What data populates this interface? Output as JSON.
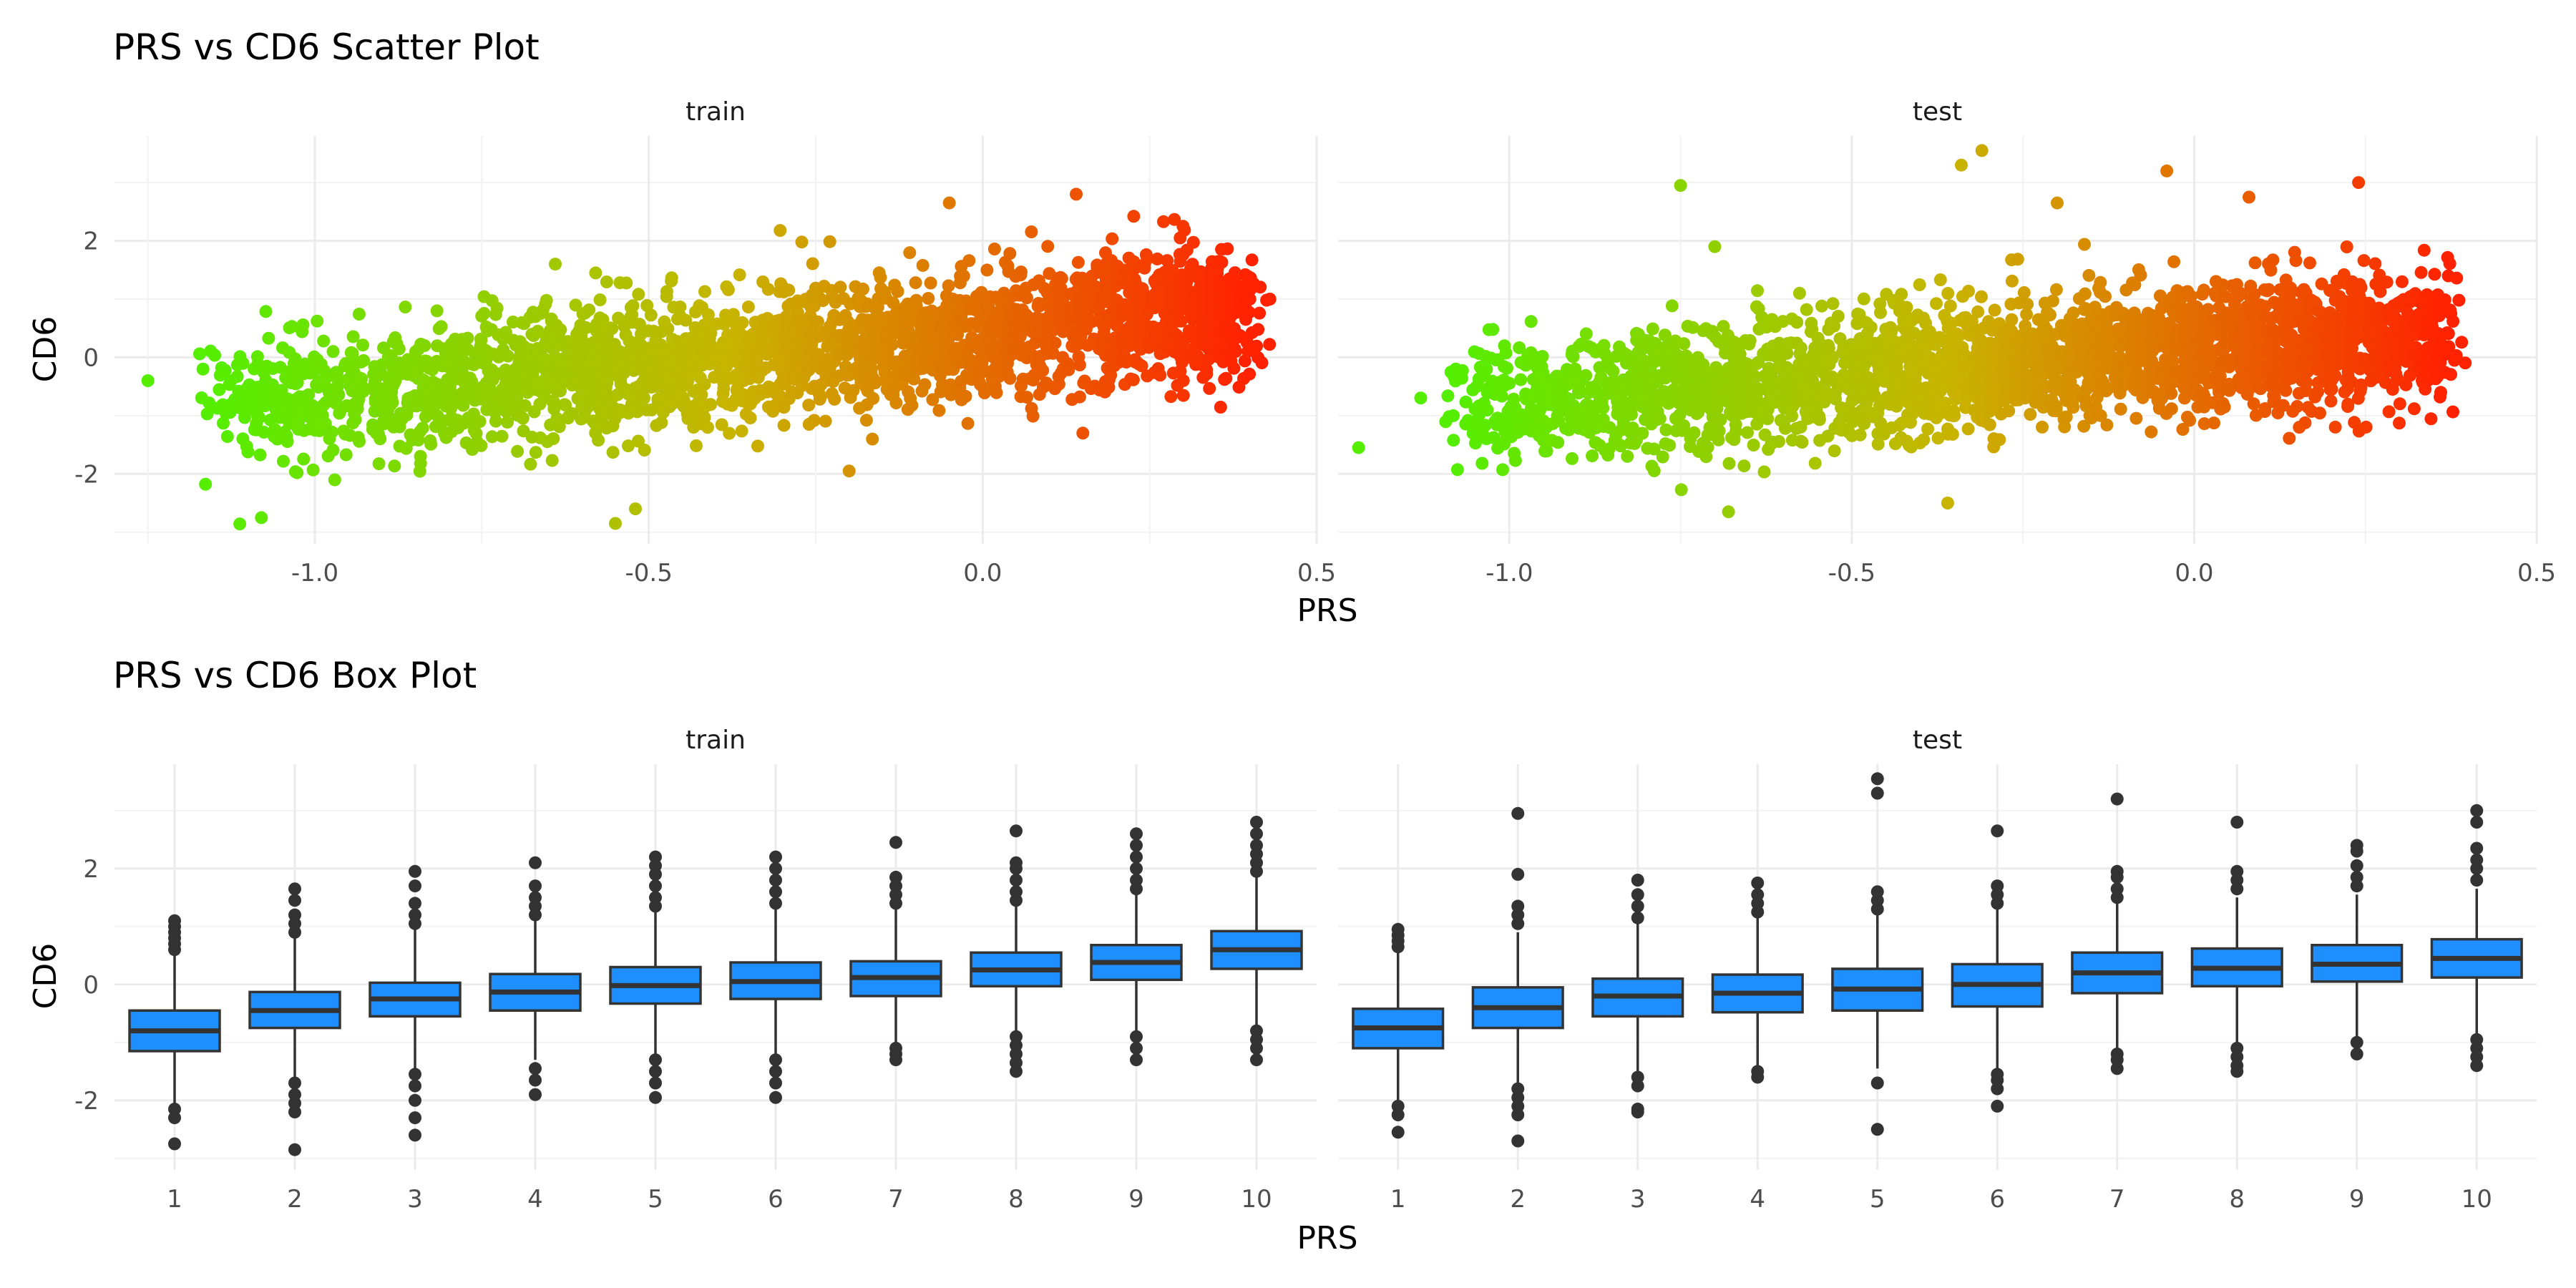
{
  "chart_data": [
    {
      "type": "scatter",
      "title": "PRS vs CD6 Scatter Plot",
      "xlabel": "PRS",
      "ylabel": "CD6",
      "grid": true,
      "legend": "none",
      "color_gradient": [
        "#55ee00",
        "#c8b400",
        "#ff2200"
      ],
      "panels": [
        {
          "name": "train",
          "xlim": [
            -1.3,
            0.5
          ],
          "ylim": [
            -3.2,
            3.8
          ],
          "x_ticks": [
            -1.0,
            -0.5,
            0.0,
            0.5
          ],
          "x_tick_labels": [
            "-1.0",
            "-0.5",
            "0.0",
            "0.5"
          ],
          "y_ticks": [
            -2,
            0,
            2
          ],
          "y_tick_labels": [
            "-2",
            "0",
            "2"
          ],
          "trend": {
            "x_start": -1.15,
            "x_end": 0.4,
            "y_start": -0.85,
            "y_end": 0.85,
            "spread": 0.55
          },
          "outliers": [
            [
              -1.25,
              -0.4
            ],
            [
              -1.08,
              -2.75
            ],
            [
              -0.55,
              -2.85
            ],
            [
              -0.52,
              -2.6
            ],
            [
              -0.64,
              1.6
            ],
            [
              -0.05,
              2.65
            ],
            [
              0.14,
              2.8
            ],
            [
              0.3,
              2.25
            ],
            [
              0.4,
              1.0
            ],
            [
              0.43,
              1.0
            ],
            [
              0.38,
              1.4
            ],
            [
              -0.2,
              -1.95
            ],
            [
              0.15,
              -1.3
            ]
          ]
        },
        {
          "name": "test",
          "xlim": [
            -1.25,
            0.5
          ],
          "ylim": [
            -3.2,
            3.8
          ],
          "x_ticks": [
            -1.0,
            -0.5,
            0.0,
            0.5
          ],
          "x_tick_labels": [
            "-1.0",
            "-0.5",
            "0.0",
            "0.5"
          ],
          "y_ticks": [
            -2,
            0,
            2
          ],
          "y_tick_labels": [
            "-2",
            "0",
            "2"
          ],
          "trend": {
            "x_start": -1.08,
            "x_end": 0.37,
            "y_start": -0.85,
            "y_end": 0.45,
            "spread": 0.55
          },
          "outliers": [
            [
              -1.22,
              -1.55
            ],
            [
              -0.75,
              2.95
            ],
            [
              -0.7,
              1.9
            ],
            [
              -0.31,
              3.55
            ],
            [
              -0.34,
              3.3
            ],
            [
              -0.04,
              3.2
            ],
            [
              0.24,
              3.0
            ],
            [
              0.08,
              2.75
            ],
            [
              -0.2,
              2.65
            ],
            [
              -0.68,
              -2.65
            ],
            [
              -0.36,
              -2.5
            ],
            [
              0.36,
              -0.6
            ],
            [
              0.38,
              -0.05
            ]
          ]
        }
      ]
    },
    {
      "type": "box",
      "title": "PRS vs CD6 Box Plot",
      "xlabel": "PRS",
      "ylabel": "CD6",
      "grid": true,
      "legend": "none",
      "box_color": "#1f8fff",
      "categories": [
        "1",
        "2",
        "3",
        "4",
        "5",
        "6",
        "7",
        "8",
        "9",
        "10"
      ],
      "panels": [
        {
          "name": "train",
          "ylim": [
            -3.2,
            3.8
          ],
          "y_ticks": [
            -2,
            0,
            2
          ],
          "y_tick_labels": [
            "-2",
            "0",
            "2"
          ],
          "boxes": [
            {
              "q1": -1.15,
              "median": -0.8,
              "q3": -0.45,
              "whisker_low": -2.05,
              "whisker_high": 0.5,
              "outliers": [
                -2.15,
                -2.3,
                -2.75,
                0.6,
                0.7,
                0.8,
                0.9,
                1.0,
                1.1
              ]
            },
            {
              "q1": -0.75,
              "median": -0.45,
              "q3": -0.13,
              "whisker_low": -1.6,
              "whisker_high": 0.8,
              "outliers": [
                -1.7,
                -1.9,
                -2.05,
                -2.2,
                -2.85,
                0.9,
                1.05,
                1.2,
                1.45,
                1.65
              ]
            },
            {
              "q1": -0.55,
              "median": -0.25,
              "q3": 0.03,
              "whisker_low": -1.45,
              "whisker_high": 0.95,
              "outliers": [
                -1.55,
                -1.75,
                -2.0,
                -2.3,
                -2.6,
                1.05,
                1.2,
                1.4,
                1.7,
                1.95
              ]
            },
            {
              "q1": -0.45,
              "median": -0.13,
              "q3": 0.18,
              "whisker_low": -1.3,
              "whisker_high": 1.1,
              "outliers": [
                -1.45,
                -1.65,
                -1.9,
                1.2,
                1.35,
                1.5,
                1.7,
                2.1
              ]
            },
            {
              "q1": -0.33,
              "median": -0.02,
              "q3": 0.3,
              "whisker_low": -1.2,
              "whisker_high": 1.25,
              "outliers": [
                -1.3,
                -1.5,
                -1.7,
                -1.95,
                1.35,
                1.5,
                1.7,
                1.9,
                2.05,
                2.2
              ]
            },
            {
              "q1": -0.25,
              "median": 0.05,
              "q3": 0.38,
              "whisker_low": -1.2,
              "whisker_high": 1.3,
              "outliers": [
                -1.3,
                -1.5,
                -1.7,
                -1.95,
                1.4,
                1.6,
                1.8,
                2.0,
                2.2
              ]
            },
            {
              "q1": -0.2,
              "median": 0.12,
              "q3": 0.4,
              "whisker_low": -1.0,
              "whisker_high": 1.3,
              "outliers": [
                -1.1,
                -1.2,
                -1.3,
                1.4,
                1.55,
                1.7,
                1.85,
                2.45
              ]
            },
            {
              "q1": -0.03,
              "median": 0.25,
              "q3": 0.55,
              "whisker_low": -0.8,
              "whisker_high": 1.35,
              "outliers": [
                -0.9,
                -1.05,
                -1.2,
                -1.35,
                -1.5,
                1.45,
                1.6,
                1.8,
                2.0,
                2.1,
                2.65
              ]
            },
            {
              "q1": 0.08,
              "median": 0.38,
              "q3": 0.68,
              "whisker_low": -0.8,
              "whisker_high": 1.55,
              "outliers": [
                -0.9,
                -1.1,
                -1.3,
                1.65,
                1.8,
                2.0,
                2.2,
                2.4,
                2.6
              ]
            },
            {
              "q1": 0.27,
              "median": 0.6,
              "q3": 0.92,
              "whisker_low": -0.7,
              "whisker_high": 1.85,
              "outliers": [
                -0.8,
                -0.95,
                -1.1,
                -1.3,
                1.95,
                2.1,
                2.25,
                2.4,
                2.6,
                2.8
              ]
            }
          ]
        },
        {
          "name": "test",
          "ylim": [
            -3.2,
            3.8
          ],
          "y_ticks": [
            -2,
            0,
            2
          ],
          "y_tick_labels": [
            "-2",
            "0",
            "2"
          ],
          "boxes": [
            {
              "q1": -1.1,
              "median": -0.75,
              "q3": -0.42,
              "whisker_low": -2.0,
              "whisker_high": 0.55,
              "outliers": [
                -2.1,
                -2.25,
                -2.55,
                0.65,
                0.75,
                0.85,
                0.95
              ]
            },
            {
              "q1": -0.75,
              "median": -0.4,
              "q3": -0.05,
              "whisker_low": -1.7,
              "whisker_high": 0.9,
              "outliers": [
                -1.8,
                -1.95,
                -2.1,
                -2.25,
                -2.7,
                1.05,
                1.2,
                1.35,
                1.9,
                2.95
              ]
            },
            {
              "q1": -0.55,
              "median": -0.2,
              "q3": 0.1,
              "whisker_low": -1.5,
              "whisker_high": 1.05,
              "outliers": [
                -1.6,
                -1.75,
                -2.15,
                -2.2,
                1.15,
                1.35,
                1.55,
                1.8
              ]
            },
            {
              "q1": -0.48,
              "median": -0.15,
              "q3": 0.17,
              "whisker_low": -1.4,
              "whisker_high": 1.15,
              "outliers": [
                -1.5,
                -1.6,
                1.25,
                1.4,
                1.55,
                1.75
              ]
            },
            {
              "q1": -0.45,
              "median": -0.08,
              "q3": 0.27,
              "whisker_low": -1.45,
              "whisker_high": 1.2,
              "outliers": [
                -1.7,
                -2.5,
                1.3,
                1.45,
                1.6,
                3.3,
                3.55
              ]
            },
            {
              "q1": -0.38,
              "median": 0.0,
              "q3": 0.35,
              "whisker_low": -1.45,
              "whisker_high": 1.3,
              "outliers": [
                -1.55,
                -1.65,
                -1.8,
                -2.1,
                1.4,
                1.55,
                1.7,
                2.65
              ]
            },
            {
              "q1": -0.15,
              "median": 0.2,
              "q3": 0.55,
              "whisker_low": -1.1,
              "whisker_high": 1.4,
              "outliers": [
                -1.2,
                -1.3,
                -1.45,
                1.5,
                1.65,
                1.85,
                1.95,
                3.2
              ]
            },
            {
              "q1": -0.03,
              "median": 0.28,
              "q3": 0.62,
              "whisker_low": -1.0,
              "whisker_high": 1.5,
              "outliers": [
                -1.1,
                -1.25,
                -1.4,
                -1.5,
                1.65,
                1.8,
                1.95,
                2.8
              ]
            },
            {
              "q1": 0.05,
              "median": 0.35,
              "q3": 0.68,
              "whisker_low": -0.9,
              "whisker_high": 1.55,
              "outliers": [
                -1.0,
                -1.2,
                1.7,
                1.85,
                2.05,
                2.3,
                2.4
              ]
            },
            {
              "q1": 0.12,
              "median": 0.45,
              "q3": 0.78,
              "whisker_low": -0.85,
              "whisker_high": 1.65,
              "outliers": [
                -0.95,
                -1.1,
                -1.25,
                -1.4,
                1.8,
                2.0,
                2.15,
                2.35,
                2.8,
                3.0
              ]
            }
          ]
        }
      ]
    }
  ]
}
